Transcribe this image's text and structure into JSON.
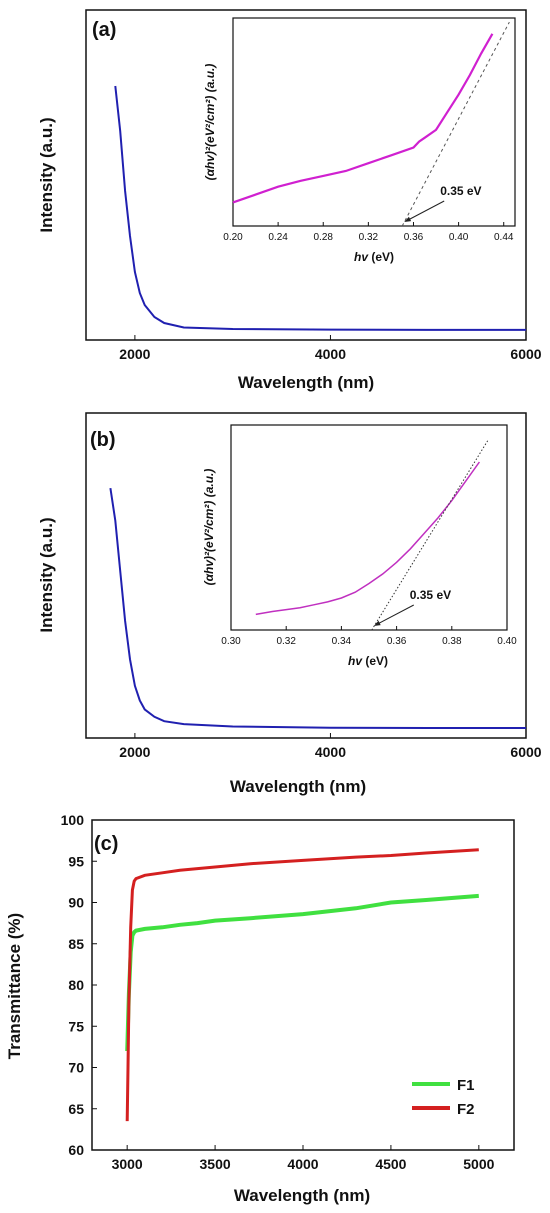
{
  "chart_data": [
    {
      "type": "line",
      "panel_label": "(a)",
      "xlabel": "Wavelength (nm)",
      "ylabel": "Intensity (a.u.)",
      "xlim": [
        1500,
        6000
      ],
      "ylim": [
        0,
        1
      ],
      "x_ticks": [
        2000,
        4000,
        6000
      ],
      "y_ticks_labeled": false,
      "grid": false,
      "series": [
        {
          "color": "#2020b0",
          "x": [
            1800,
            1850,
            1900,
            1950,
            2000,
            2050,
            2100,
            2200,
            2300,
            2500,
            3000,
            4000,
            5000,
            6000
          ],
          "y": [
            0.83,
            0.68,
            0.48,
            0.33,
            0.21,
            0.14,
            0.1,
            0.06,
            0.04,
            0.025,
            0.02,
            0.018,
            0.017,
            0.017
          ]
        }
      ],
      "inset": {
        "xlabel_prefix": "hv",
        "xlabel_suffix": " (eV)",
        "ylabel": "(αhv)²(eV²/cm²) (a.u.)",
        "xlim": [
          0.2,
          0.45
        ],
        "ylim": [
          0,
          1
        ],
        "x_ticks": [
          "0.20",
          "0.24",
          "0.28",
          "0.32",
          "0.36",
          "0.40",
          "0.44"
        ],
        "y_ticks_labeled": false,
        "series": [
          {
            "color": "#d020d0",
            "x": [
              0.2,
              0.22,
              0.24,
              0.26,
              0.28,
              0.3,
              0.32,
              0.34,
              0.36,
              0.365,
              0.37,
              0.38,
              0.39,
              0.4,
              0.41,
              0.42,
              0.43
            ],
            "y": [
              0.1,
              0.14,
              0.18,
              0.21,
              0.235,
              0.26,
              0.3,
              0.34,
              0.38,
              0.41,
              0.43,
              0.47,
              0.56,
              0.65,
              0.75,
              0.86,
              0.96
            ]
          }
        ],
        "tangent": {
          "x": [
            0.35,
            0.445
          ],
          "y": [
            0,
            1.02
          ]
        },
        "annotation": {
          "text": "0.35 eV",
          "x": 0.35
        }
      }
    },
    {
      "type": "line",
      "panel_label": "(b)",
      "xlabel": "Wavelength (nm)",
      "ylabel": "Intensity (a.u.)",
      "xlim": [
        1500,
        6000
      ],
      "ylim": [
        0,
        1
      ],
      "x_ticks": [
        2000,
        4000,
        6000
      ],
      "y_ticks_labeled": false,
      "grid": false,
      "series": [
        {
          "color": "#2020b0",
          "x": [
            1750,
            1800,
            1850,
            1900,
            1950,
            2000,
            2050,
            2100,
            2200,
            2300,
            2500,
            3000,
            4000,
            5000,
            6000
          ],
          "y": [
            0.83,
            0.72,
            0.55,
            0.38,
            0.25,
            0.16,
            0.11,
            0.08,
            0.055,
            0.04,
            0.03,
            0.022,
            0.018,
            0.017,
            0.017
          ]
        }
      ],
      "inset": {
        "xlabel_prefix": "hv",
        "xlabel_suffix": " (eV)",
        "ylabel": "(αhv)²(eV²/cm²) (a.u.)",
        "xlim": [
          0.3,
          0.4
        ],
        "ylim": [
          0,
          1
        ],
        "x_ticks": [
          "0.30",
          "0.32",
          "0.34",
          "0.36",
          "0.38",
          "0.40"
        ],
        "y_ticks_labeled": false,
        "series": [
          {
            "color": "#c030c0",
            "x": [
              0.309,
              0.315,
              0.32,
              0.325,
              0.33,
              0.335,
              0.34,
              0.345,
              0.35,
              0.355,
              0.36,
              0.365,
              0.37,
              0.375,
              0.38,
              0.385,
              0.39
            ],
            "y": [
              0.06,
              0.075,
              0.085,
              0.095,
              0.11,
              0.125,
              0.145,
              0.175,
              0.22,
              0.27,
              0.33,
              0.4,
              0.48,
              0.56,
              0.65,
              0.75,
              0.85
            ]
          }
        ],
        "tangent": {
          "x": [
            0.351,
            0.393
          ],
          "y": [
            0,
            0.96
          ]
        },
        "annotation": {
          "text": "0.35 eV",
          "x": 0.351
        }
      }
    },
    {
      "type": "line",
      "panel_label": "(c)",
      "xlabel": "Wavelength (nm)",
      "ylabel": "Transmittance (%)",
      "xlim": [
        2800,
        5200
      ],
      "ylim": [
        60,
        100
      ],
      "x_ticks": [
        3000,
        3500,
        4000,
        4500,
        5000
      ],
      "y_ticks": [
        60,
        65,
        70,
        75,
        80,
        85,
        90,
        95,
        100
      ],
      "grid": false,
      "legend": "bottom-right",
      "series": [
        {
          "name": "F1",
          "color": "#40e040",
          "x": [
            3000,
            3010,
            3020,
            3030,
            3040,
            3050,
            3100,
            3200,
            3300,
            3400,
            3500,
            3700,
            4000,
            4300,
            4500,
            4700,
            5000
          ],
          "y": [
            72,
            79,
            84,
            86,
            86.4,
            86.6,
            86.8,
            87.0,
            87.3,
            87.5,
            87.8,
            88.1,
            88.6,
            89.3,
            90.0,
            90.3,
            90.8
          ]
        },
        {
          "name": "F2",
          "color": "#d42020",
          "x": [
            3000,
            3005,
            3010,
            3020,
            3030,
            3040,
            3050,
            3100,
            3200,
            3300,
            3500,
            3700,
            4000,
            4300,
            4500,
            4700,
            5000
          ],
          "y": [
            63.5,
            70,
            78,
            87,
            91.5,
            92.6,
            92.9,
            93.3,
            93.6,
            93.9,
            94.3,
            94.7,
            95.1,
            95.5,
            95.7,
            96.0,
            96.4
          ]
        }
      ]
    }
  ]
}
